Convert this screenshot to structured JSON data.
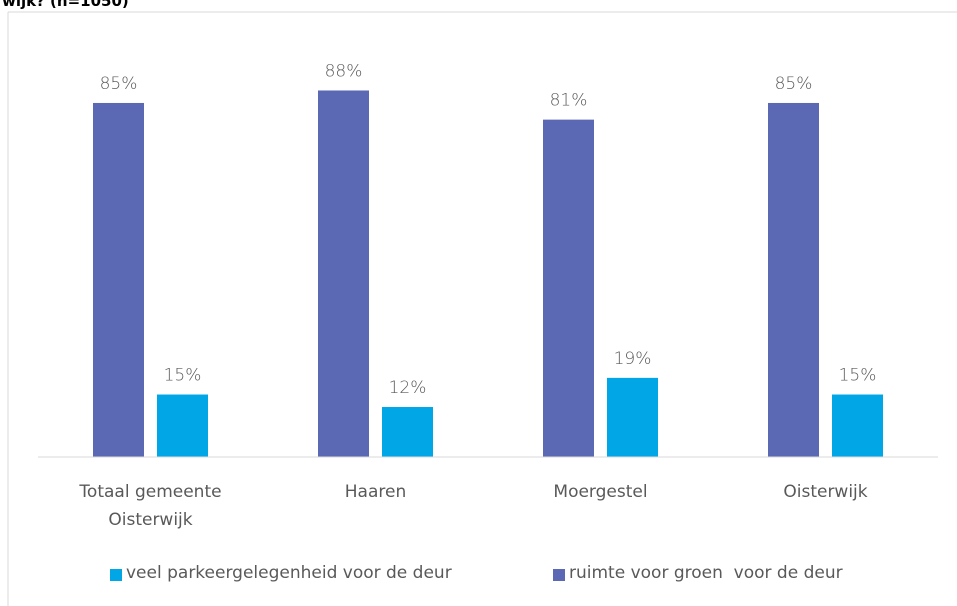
{
  "chart_data": {
    "type": "bar",
    "title": "wijk? (n=1050)",
    "categories": [
      "Totaal gemeente Oisterwijk",
      "Haaren",
      "Moergestel",
      "Oisterwijk"
    ],
    "series": [
      {
        "name": "veel parkeergelegenheid voor de deur",
        "color": "#00a6e6",
        "values": [
          15,
          12,
          19,
          15
        ],
        "value_labels": [
          "15%",
          "12%",
          "19%",
          "15%"
        ]
      },
      {
        "name": "ruimte voor groen  voor de deur",
        "color": "#5b69b5",
        "values": [
          85,
          88,
          81,
          85
        ],
        "value_labels": [
          "85%",
          "88%",
          "81%",
          "85%"
        ]
      }
    ],
    "ylim": [
      0,
      100
    ],
    "legend": "bottom"
  }
}
